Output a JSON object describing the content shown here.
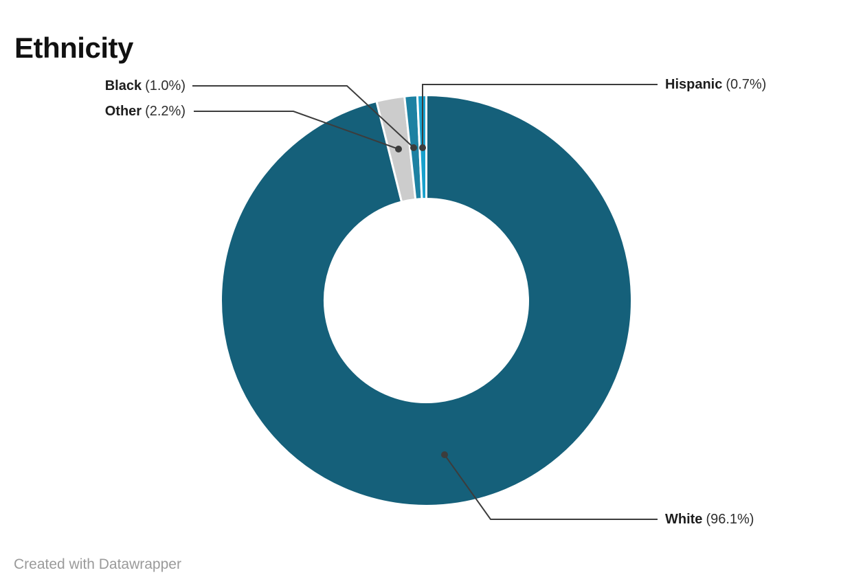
{
  "chart_data": {
    "type": "pie",
    "subtype": "donut",
    "title": "Ethnicity",
    "slices": [
      {
        "label": "White",
        "value": 96.1,
        "value_text": "(96.1%)",
        "color": "#15607a"
      },
      {
        "label": "Other",
        "value": 2.2,
        "value_text": "(2.2%)",
        "color": "#cccccc"
      },
      {
        "label": "Black",
        "value": 1.0,
        "value_text": "(1.0%)",
        "color": "#1d81a2"
      },
      {
        "label": "Hispanic",
        "value": 0.7,
        "value_text": "(0.7%)",
        "color": "#18a1cd"
      }
    ],
    "start_angle_deg": 0,
    "direction": "clockwise",
    "hole_ratio": 0.495,
    "background": "#ffffff",
    "slice_stroke_color": "#ffffff",
    "leader_line_color": "#3c3c3c",
    "label_text_color": "#1d1d1d",
    "legend_position": "callout-labels"
  },
  "footer": {
    "credit": "Created with Datawrapper"
  }
}
